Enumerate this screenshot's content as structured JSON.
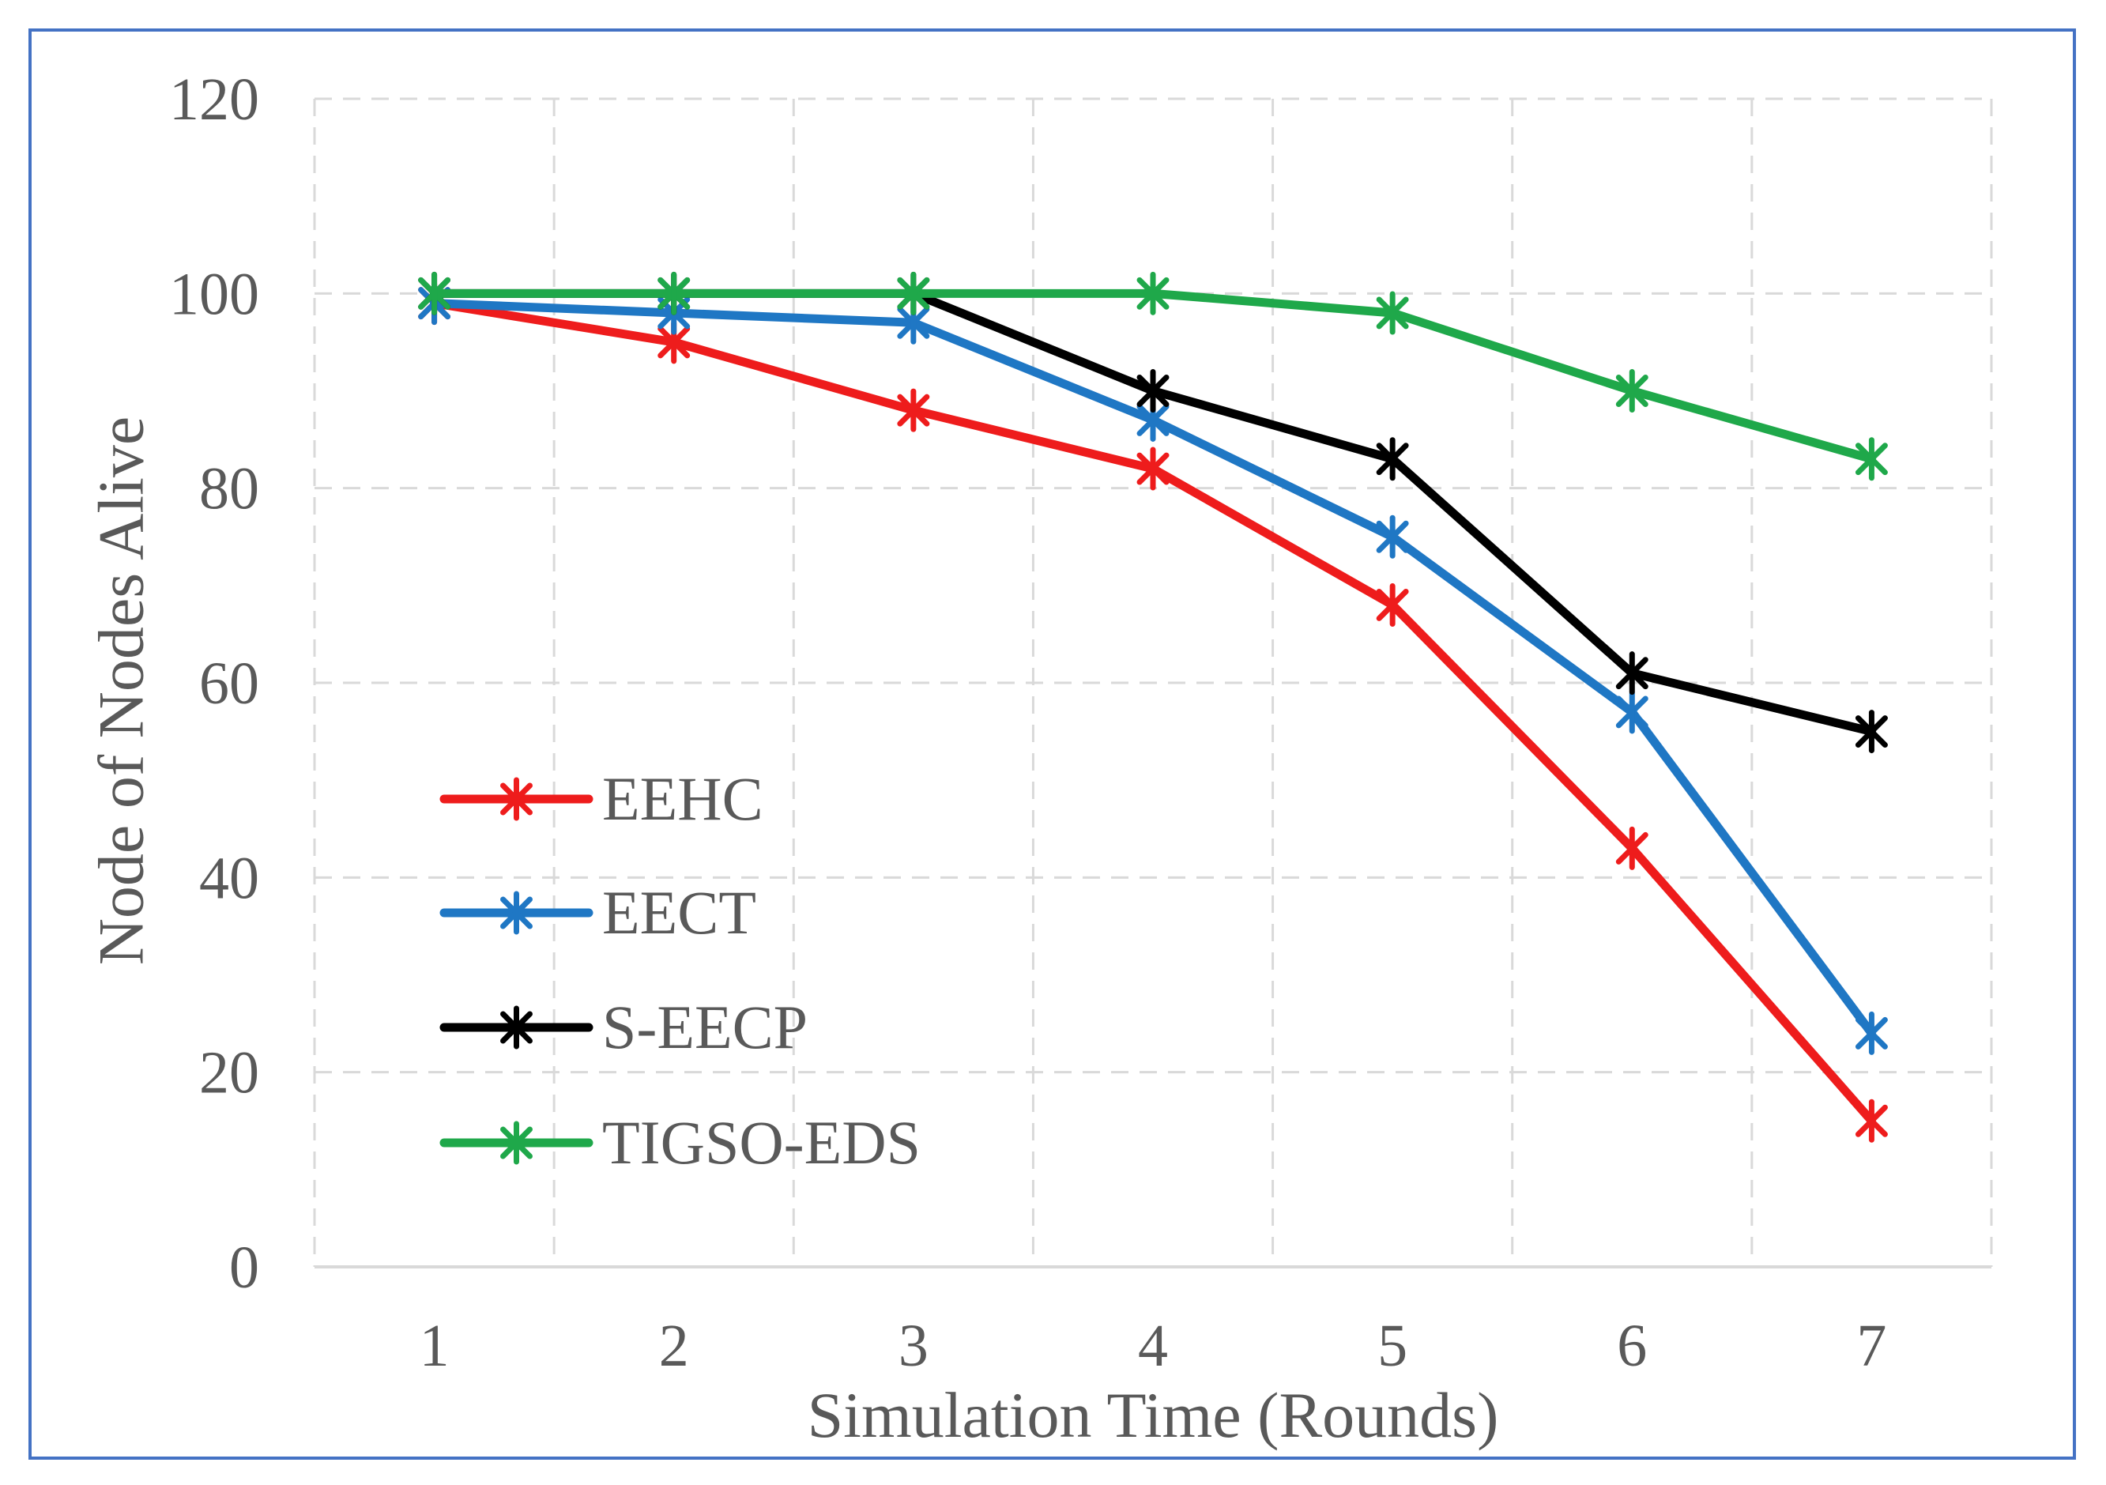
{
  "chart_data": {
    "type": "line",
    "title": "",
    "xlabel": "Simulation Time (Rounds)",
    "ylabel": "Node of Nodes Alive",
    "categories": [
      "1",
      "2",
      "3",
      "4",
      "5",
      "6",
      "7"
    ],
    "ylim": [
      0,
      120
    ],
    "yticks": [
      0,
      20,
      40,
      60,
      80,
      100,
      120
    ],
    "grid": true,
    "legend_position": "left-center",
    "marker": "asterisk",
    "series": [
      {
        "name": "EEHC",
        "color": "#ee1c1c",
        "values": [
          99,
          95,
          88,
          82,
          68,
          43,
          15
        ]
      },
      {
        "name": "EECT",
        "color": "#1f77c4",
        "values": [
          99,
          98,
          97,
          87,
          75,
          57,
          24
        ]
      },
      {
        "name": "S-EECP",
        "color": "#000000",
        "values": [
          100,
          100,
          100,
          90,
          83,
          61,
          55
        ]
      },
      {
        "name": "TIGSO-EDS",
        "color": "#1fa84a",
        "values": [
          100,
          100,
          100,
          100,
          98,
          90,
          83
        ]
      }
    ]
  }
}
